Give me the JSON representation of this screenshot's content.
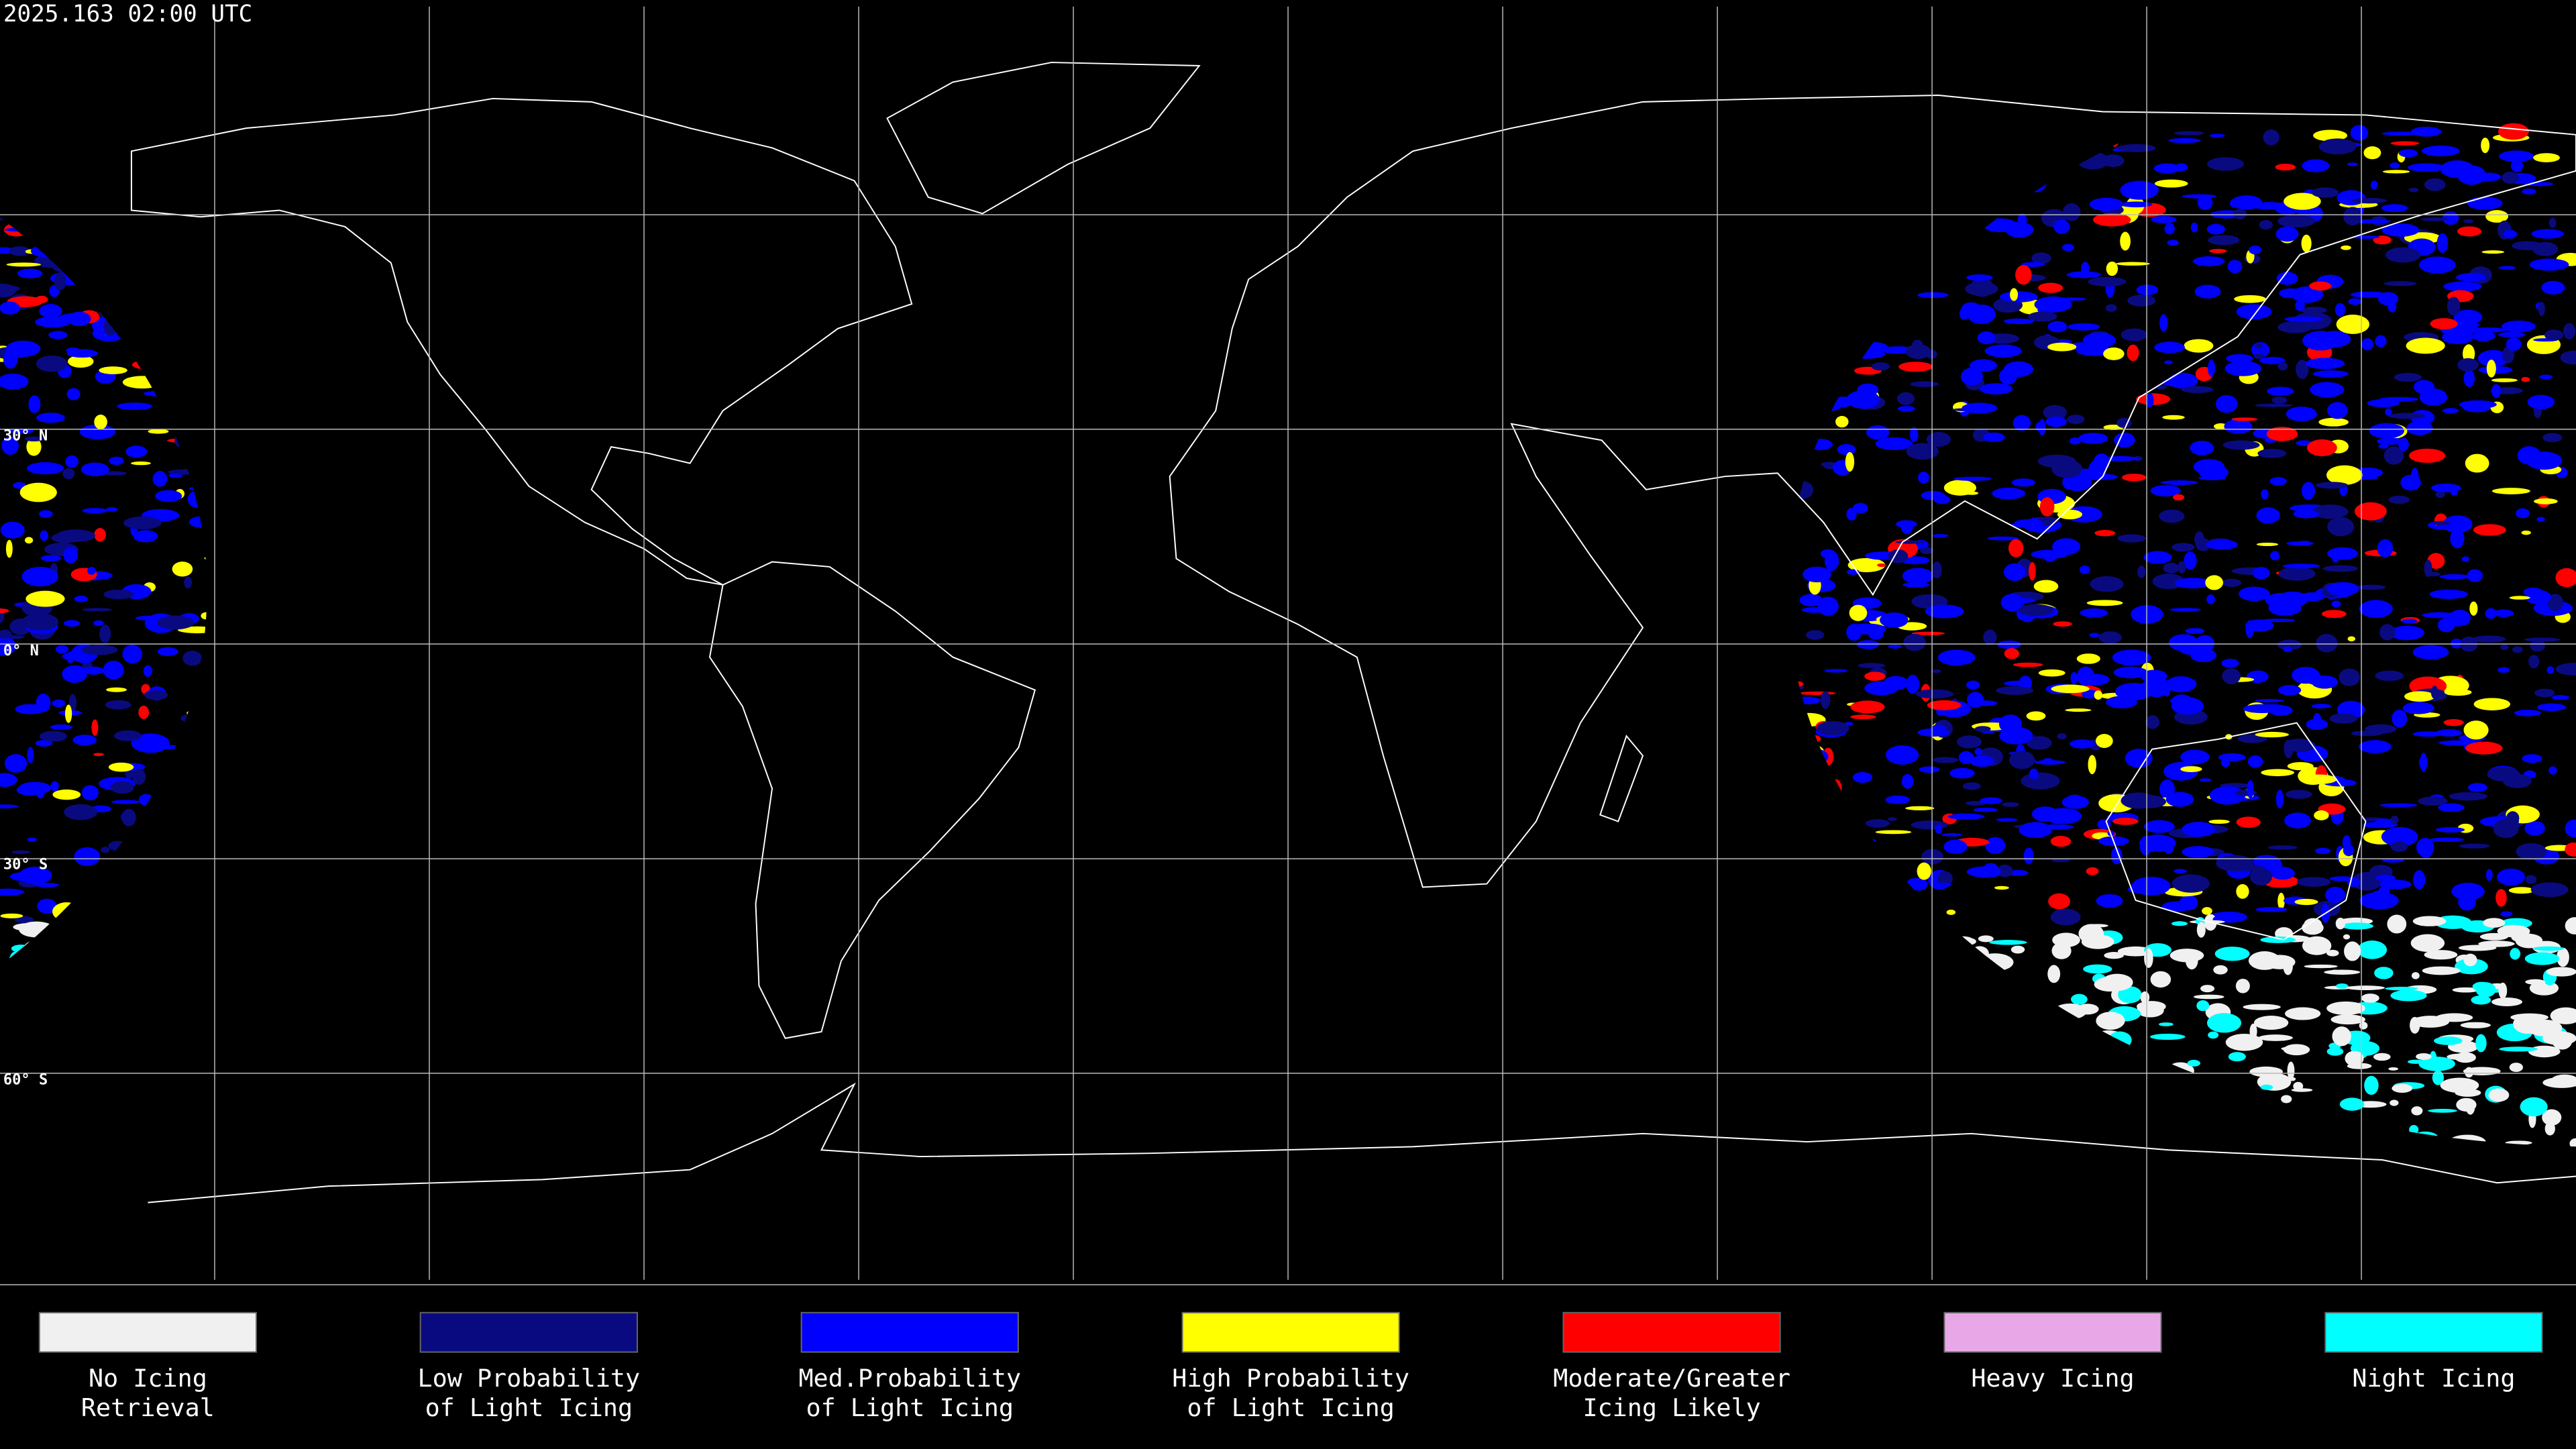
{
  "timestamp": "2025.163 02:00 UTC",
  "latitude_labels": [
    "30° N",
    "0° N",
    "30° S",
    "60° S"
  ],
  "legend": [
    {
      "lines": [
        "No Icing",
        "Retrieval"
      ],
      "color": "#f0f0f0"
    },
    {
      "lines": [
        "Low Probability",
        "of Light Icing"
      ],
      "color": "#0a0a80"
    },
    {
      "lines": [
        "Med.Probability",
        "of Light Icing"
      ],
      "color": "#0000ff"
    },
    {
      "lines": [
        "High Probability",
        "of Light Icing"
      ],
      "color": "#ffff00"
    },
    {
      "lines": [
        "Moderate/Greater",
        "Icing Likely"
      ],
      "color": "#ff0000"
    },
    {
      "lines": [
        "Heavy Icing"
      ],
      "color": "#e8a8e8"
    },
    {
      "lines": [
        "Night Icing"
      ],
      "color": "#00ffff"
    }
  ]
}
